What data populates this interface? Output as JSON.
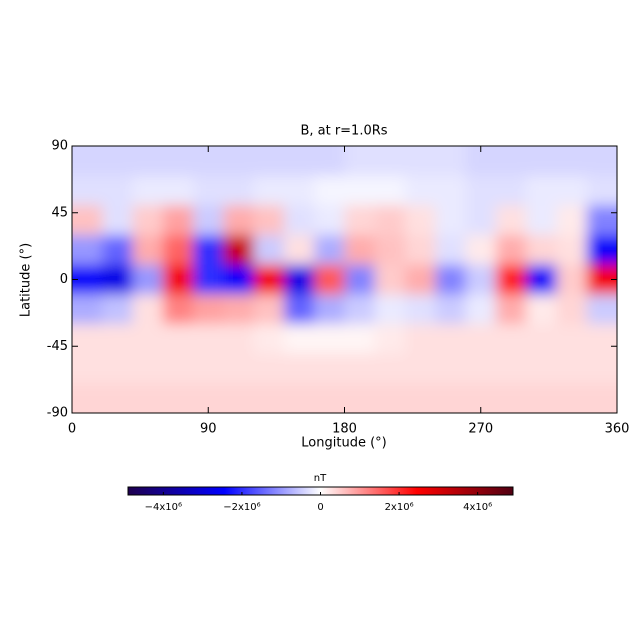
{
  "chart_data": {
    "type": "heatmap",
    "title": "B, at r=1.0Rs",
    "x_label": "Longitude (°)",
    "y_label": "Latitude (°)",
    "x": [
      10,
      30,
      50,
      70,
      90,
      110,
      130,
      150,
      170,
      190,
      210,
      230,
      250,
      270,
      290,
      310,
      330,
      350
    ],
    "y": [
      80,
      60,
      40,
      20,
      0,
      -20,
      -40,
      -60,
      -80
    ],
    "z": [
      [
        -400000.0,
        -400000.0,
        -400000.0,
        -400000.0,
        -400000.0,
        -400000.0,
        -400000.0,
        -400000.0,
        -400000.0,
        -300000.0,
        -300000.0,
        -300000.0,
        -300000.0,
        -400000.0,
        -400000.0,
        -400000.0,
        -400000.0,
        -400000.0
      ],
      [
        -300000.0,
        -300000.0,
        -200000.0,
        -200000.0,
        -300000.0,
        -300000.0,
        -200000.0,
        -200000.0,
        -100000.0,
        -100000.0,
        -100000.0,
        -200000.0,
        -200000.0,
        -300000.0,
        -300000.0,
        -200000.0,
        -200000.0,
        -300000.0
      ],
      [
        600000.0,
        -300000.0,
        500000.0,
        900000.0,
        -500000.0,
        800000.0,
        600000.0,
        -300000.0,
        -200000.0,
        400000.0,
        500000.0,
        300000.0,
        -200000.0,
        -300000.0,
        300000.0,
        -200000.0,
        200000.0,
        -1200000.0
      ],
      [
        -1000000.0,
        -1500000.0,
        800000.0,
        1500000.0,
        -2000000.0,
        3200000.0,
        -500000.0,
        300000.0,
        -800000.0,
        800000.0,
        600000.0,
        400000.0,
        -300000.0,
        200000.0,
        800000.0,
        400000.0,
        300000.0,
        -2500000.0
      ],
      [
        -2500000.0,
        -2800000.0,
        -1000000.0,
        2600000.0,
        -2000000.0,
        -2500000.0,
        2600000.0,
        -2800000.0,
        1600000.0,
        -1200000.0,
        500000.0,
        800000.0,
        -1200000.0,
        -500000.0,
        2200000.0,
        -2500000.0,
        500000.0,
        2600000.0
      ],
      [
        -800000.0,
        -600000.0,
        300000.0,
        1200000.0,
        900000.0,
        800000.0,
        600000.0,
        -1500000.0,
        -800000.0,
        -500000.0,
        -200000.0,
        -300000.0,
        -500000.0,
        -200000.0,
        800000.0,
        200000.0,
        400000.0,
        -500000.0
      ],
      [
        300000.0,
        300000.0,
        300000.0,
        300000.0,
        300000.0,
        300000.0,
        200000.0,
        100000.0,
        100000.0,
        100000.0,
        200000.0,
        300000.0,
        300000.0,
        300000.0,
        300000.0,
        300000.0,
        300000.0,
        300000.0
      ],
      [
        300000.0,
        300000.0,
        300000.0,
        300000.0,
        300000.0,
        300000.0,
        300000.0,
        300000.0,
        300000.0,
        300000.0,
        300000.0,
        300000.0,
        300000.0,
        300000.0,
        300000.0,
        300000.0,
        300000.0,
        300000.0
      ],
      [
        400000.0,
        400000.0,
        400000.0,
        400000.0,
        400000.0,
        400000.0,
        400000.0,
        400000.0,
        400000.0,
        400000.0,
        400000.0,
        400000.0,
        400000.0,
        400000.0,
        400000.0,
        400000.0,
        400000.0,
        400000.0
      ]
    ],
    "xlim": [
      0,
      360
    ],
    "ylim": [
      -90,
      90
    ],
    "xticks": [
      0,
      90,
      180,
      270,
      360
    ],
    "yticks": [
      -90,
      -45,
      0,
      45,
      90
    ],
    "colorbar_label": "nT",
    "zlim": [
      -4900000.0,
      4900000.0
    ],
    "zticks": [
      {
        "value": -4000000.0,
        "label": "−4x10⁶"
      },
      {
        "value": -2000000.0,
        "label": "−2x10⁶"
      },
      0,
      {
        "value": 2000000.0,
        "label": "2x10⁶"
      },
      {
        "value": 4000000.0,
        "label": "4x10⁶"
      }
    ],
    "colormap": [
      "#1e004e",
      "#0000ff",
      "#ffffff",
      "#ff0000",
      "#500012"
    ]
  }
}
